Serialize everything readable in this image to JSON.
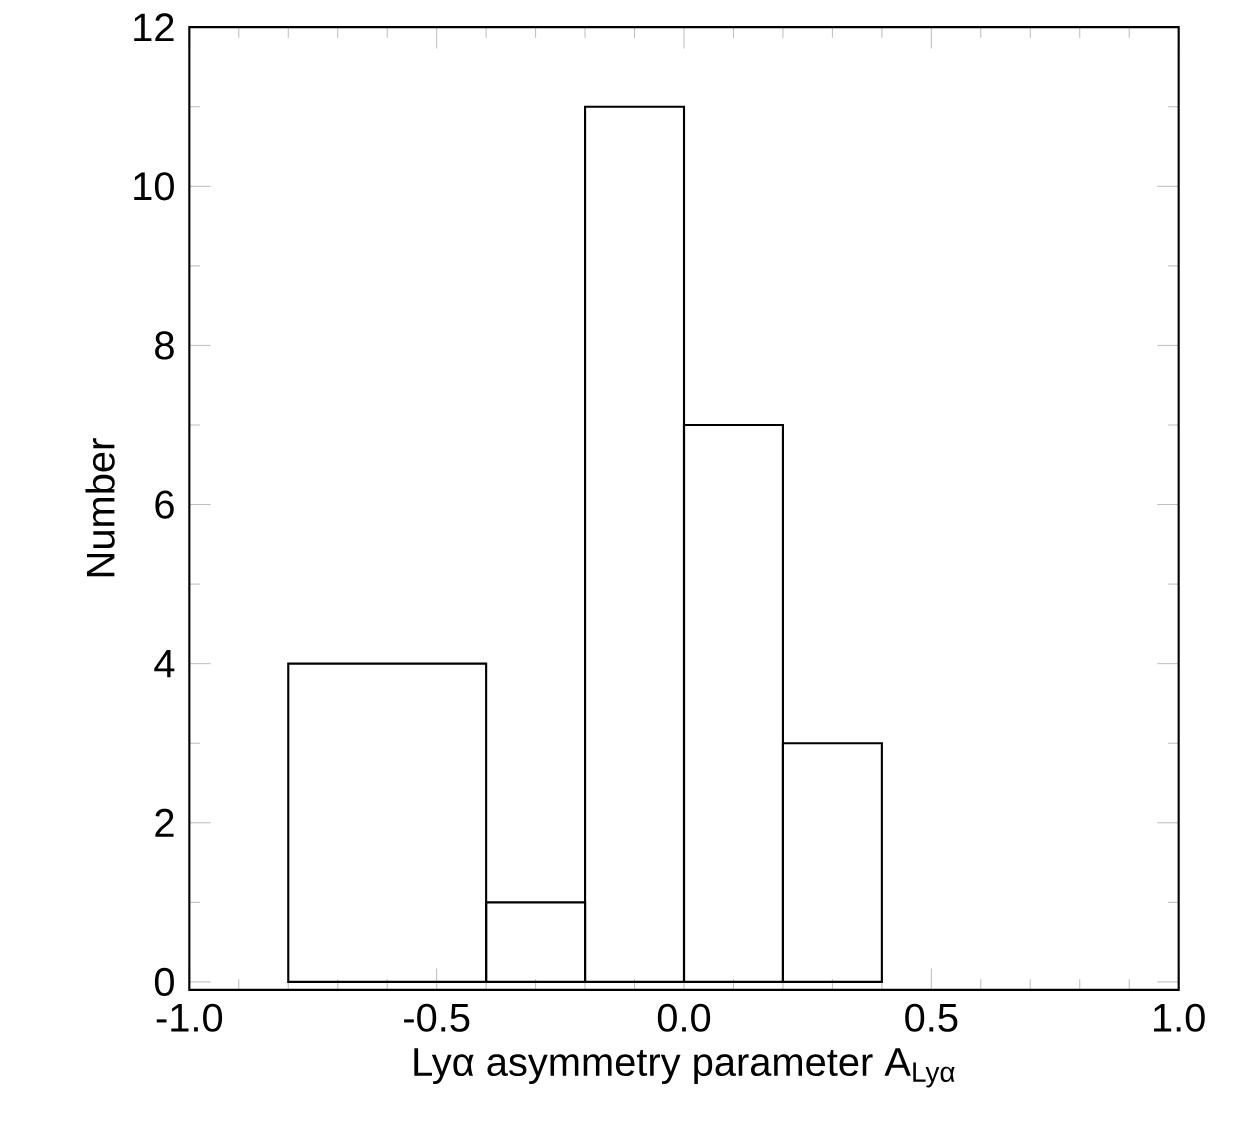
{
  "chart_data": {
    "type": "histogram",
    "xlabel": "Lyα asymmetry parameter A$_{Lyα}$",
    "ylabel": "Number",
    "bins": [
      -0.8,
      -0.4,
      -0.2,
      0.0,
      0.2,
      0.4
    ],
    "values": [
      4,
      1,
      11,
      7,
      3
    ],
    "color": "#000000",
    "xlim": [
      -1.0,
      1.0
    ],
    "ylim": [
      -0.1,
      12
    ],
    "xticks": [
      {
        "value": -1.0,
        "label": "-1.0"
      },
      {
        "value": -0.5,
        "label": "-0.5"
      },
      {
        "value": 0.0,
        "label": "0.0"
      },
      {
        "value": 0.5,
        "label": "0.5"
      },
      {
        "value": 1.0,
        "label": "1.0"
      }
    ],
    "yticks": [
      0,
      2,
      4,
      6,
      8,
      10,
      12
    ]
  }
}
